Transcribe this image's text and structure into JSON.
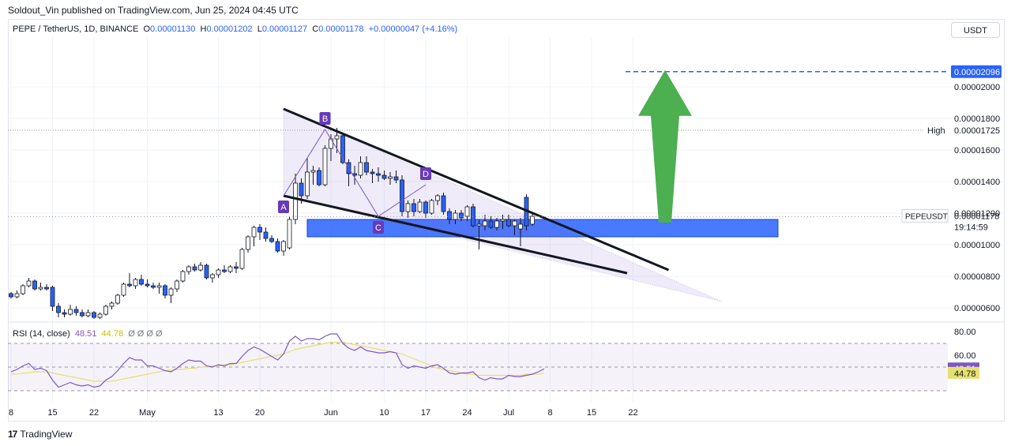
{
  "header": {
    "published_text": "Soldout_Vin published on TradingView.com, Jun 25, 2024 04:45 UTC"
  },
  "legend": {
    "symbol": "PEPE / TetherUS, 1D, BINANCE",
    "open_label": "O",
    "open": "0.00001130",
    "high_label": "H",
    "high": "0.00001202",
    "low_label": "L",
    "low": "0.00001127",
    "close_label": "C",
    "close": "0.00001178",
    "change": "+0.00000047 (+4.16%)"
  },
  "currency_button": "USDT",
  "rsi_legend": {
    "name": "RSI (14, close)",
    "rsi_value": "48.51",
    "ma_value": "44.78",
    "extras": "Ø Ø Ø Ø"
  },
  "footer": {
    "brand": "TradingView"
  },
  "colors": {
    "up": "#ffffff",
    "down": "#2962ff",
    "zone": "#2962ff",
    "arrow": "#4caf50",
    "rsi": "#7e57c2",
    "rsi_ma": "#e6e070",
    "pattern": "#7e57c2"
  },
  "chart_data": {
    "type": "candlestick",
    "symbol": "PEPEUSDT",
    "price_axis": {
      "ticks": [
        "0.00000600",
        "0.00000800",
        "0.00001000",
        "0.00001200",
        "0.00001400",
        "0.00001600",
        "0.00001800",
        "0.00002000"
      ],
      "tick_values": [
        6e-06,
        8e-06,
        1e-05,
        1.2e-05,
        1.4e-05,
        1.6e-05,
        1.8e-05,
        2e-05
      ],
      "range": [
        5.2e-06,
        2.315e-05
      ]
    },
    "time_axis": {
      "labels": [
        "8",
        "15",
        "22",
        "May",
        "13",
        "20",
        "Jun",
        "10",
        "17",
        "24",
        "Jul",
        "8",
        "15",
        "22"
      ],
      "label_day_index": [
        0,
        7,
        14,
        23,
        35,
        42,
        54,
        63,
        70,
        77,
        84,
        91,
        98,
        105
      ]
    },
    "candles": [
      [
        6.9e-06,
        7e-06,
        6.6e-06,
        6.7e-06
      ],
      [
        6.7e-06,
        7.1e-06,
        6.6e-06,
        6.9e-06
      ],
      [
        6.9e-06,
        7.5e-06,
        6.8e-06,
        7.4e-06
      ],
      [
        7.4e-06,
        7.9e-06,
        7.3e-06,
        7.7e-06
      ],
      [
        7.7e-06,
        7.8e-06,
        7.1e-06,
        7.2e-06
      ],
      [
        7.2e-06,
        7.6e-06,
        7.1e-06,
        7.3e-06
      ],
      [
        7.3e-06,
        7.5e-06,
        7.1e-06,
        7.2e-06
      ],
      [
        7.3e-06,
        7.4e-06,
        5.8e-06,
        6.1e-06
      ],
      [
        6.1e-06,
        6.3e-06,
        5.4e-06,
        5.7e-06
      ],
      [
        5.7e-06,
        5.9e-06,
        5.4e-06,
        5.6e-06
      ],
      [
        5.6e-06,
        6.2e-06,
        5.5e-06,
        5.9e-06
      ],
      [
        5.9e-06,
        6.1e-06,
        5.5e-06,
        5.7e-06
      ],
      [
        5.7e-06,
        5.9e-06,
        5.4e-06,
        5.5e-06
      ],
      [
        5.5e-06,
        5.9e-06,
        5.4e-06,
        5.7e-06
      ],
      [
        5.7e-06,
        5.8e-06,
        5.3e-06,
        5.4e-06
      ],
      [
        5.4e-06,
        5.7e-06,
        5.3e-06,
        5.6e-06
      ],
      [
        5.6e-06,
        6.2e-06,
        5.5e-06,
        6.1e-06
      ],
      [
        6.1e-06,
        6.4e-06,
        5.9e-06,
        6.3e-06
      ],
      [
        6.3e-06,
        6.9e-06,
        6.2e-06,
        6.8e-06
      ],
      [
        6.8e-06,
        7.6e-06,
        6.7e-06,
        7.5e-06
      ],
      [
        7.5e-06,
        8.2e-06,
        7.3e-06,
        7.4e-06
      ],
      [
        7.4e-06,
        7.9e-06,
        7.2e-06,
        7.8e-06
      ],
      [
        7.8e-06,
        8.1e-06,
        7.4e-06,
        7.5e-06
      ],
      [
        7.5e-06,
        7.8e-06,
        7.3e-06,
        7.4e-06
      ],
      [
        7.4e-06,
        7.6e-06,
        7.2e-06,
        7.3e-06
      ],
      [
        7.3e-06,
        7.6e-06,
        6.9e-06,
        7.4e-06
      ],
      [
        7.4e-06,
        7.5e-06,
        6.6e-06,
        6.8e-06
      ],
      [
        6.8e-06,
        7.3e-06,
        6.3e-06,
        7.2e-06
      ],
      [
        7.2e-06,
        7.8e-06,
        7e-06,
        7.7e-06
      ],
      [
        7.7e-06,
        8.4e-06,
        7.6e-06,
        8.3e-06
      ],
      [
        8.3e-06,
        8.7e-06,
        8.1e-06,
        8.6e-06
      ],
      [
        8.6e-06,
        8.8e-06,
        8.3e-06,
        8.4e-06
      ],
      [
        8.4e-06,
        8.9e-06,
        8.3e-06,
        8.7e-06
      ],
      [
        8.7e-06,
        8.8e-06,
        7.8e-06,
        7.9e-06
      ],
      [
        7.9e-06,
        8.2e-06,
        7.6e-06,
        8.1e-06
      ],
      [
        8.1e-06,
        8.5e-06,
        7.9e-06,
        8.4e-06
      ],
      [
        8.4e-06,
        8.7e-06,
        8.2e-06,
        8.3e-06
      ],
      [
        8.3e-06,
        8.7e-06,
        8.2e-06,
        8.6e-06
      ],
      [
        8.6e-06,
        8.9e-06,
        8.2e-06,
        8.5e-06
      ],
      [
        8.5e-06,
        9.8e-06,
        8.4e-06,
        9.7e-06
      ],
      [
        9.7e-06,
        1.06e-05,
        9.5e-06,
        1.05e-05
      ],
      [
        1.05e-05,
        1.12e-05,
        9.9e-06,
        1.11e-05
      ],
      [
        1.11e-05,
        1.13e-05,
        1.03e-05,
        1.08e-05
      ],
      [
        1.08e-05,
        1.11e-05,
        1.02e-05,
        1.04e-05
      ],
      [
        1.04e-05,
        1.06e-05,
        1.01e-05,
        1.02e-05
      ],
      [
        1.02e-05,
        1.04e-05,
        9.5e-06,
        9.6e-06
      ],
      [
        9.6e-06,
        1.03e-05,
        9.3e-06,
        1.02e-05
      ],
      [
        9.8e-06,
        1.18e-05,
        9.7e-06,
        1.16e-05
      ],
      [
        1.16e-05,
        1.45e-05,
        1.13e-05,
        1.39e-05
      ],
      [
        1.39e-05,
        1.42e-05,
        1.26e-05,
        1.31e-05
      ],
      [
        1.31e-05,
        1.55e-05,
        1.29e-05,
        1.46e-05
      ],
      [
        1.46e-05,
        1.5e-05,
        1.38e-05,
        1.47e-05
      ],
      [
        1.47e-05,
        1.49e-05,
        1.37e-05,
        1.38e-05
      ],
      [
        1.38e-05,
        1.63e-05,
        1.37e-05,
        1.61e-05
      ],
      [
        1.61e-05,
        1.7e-05,
        1.53e-05,
        1.67e-05
      ],
      [
        1.67e-05,
        1.74e-05,
        1.58e-05,
        1.69e-05
      ],
      [
        1.69e-05,
        1.7e-05,
        1.51e-05,
        1.52e-05
      ],
      [
        1.52e-05,
        1.54e-05,
        1.37e-05,
        1.45e-05
      ],
      [
        1.45e-05,
        1.5e-05,
        1.38e-05,
        1.44e-05
      ],
      [
        1.44e-05,
        1.56e-05,
        1.42e-05,
        1.52e-05
      ],
      [
        1.52e-05,
        1.56e-05,
        1.44e-05,
        1.46e-05
      ],
      [
        1.46e-05,
        1.48e-05,
        1.39e-05,
        1.45e-05
      ],
      [
        1.45e-05,
        1.49e-05,
        1.4e-05,
        1.44e-05
      ],
      [
        1.44e-05,
        1.47e-05,
        1.41e-05,
        1.42e-05
      ],
      [
        1.42e-05,
        1.46e-05,
        1.38e-05,
        1.43e-05
      ],
      [
        1.43e-05,
        1.47e-05,
        1.39e-05,
        1.41e-05
      ],
      [
        1.41e-05,
        1.44e-05,
        1.18e-05,
        1.21e-05
      ],
      [
        1.21e-05,
        1.28e-05,
        1.17e-05,
        1.26e-05
      ],
      [
        1.26e-05,
        1.29e-05,
        1.18e-05,
        1.21e-05
      ],
      [
        1.21e-05,
        1.29e-05,
        1.2e-05,
        1.27e-05
      ],
      [
        1.27e-05,
        1.28e-05,
        1.17e-05,
        1.2e-05
      ],
      [
        1.2e-05,
        1.29e-05,
        1.19e-05,
        1.28e-05
      ],
      [
        1.28e-05,
        1.32e-05,
        1.25e-05,
        1.31e-05
      ],
      [
        1.31e-05,
        1.33e-05,
        1.19e-05,
        1.21e-05
      ],
      [
        1.21e-05,
        1.23e-05,
        1.13e-05,
        1.16e-05
      ],
      [
        1.16e-05,
        1.22e-05,
        1.13e-05,
        1.2e-05
      ],
      [
        1.2e-05,
        1.22e-05,
        1.15e-05,
        1.17e-05
      ],
      [
        1.18e-05,
        1.25e-05,
        1.15e-05,
        1.24e-05
      ],
      [
        1.24e-05,
        1.26e-05,
        1.11e-05,
        1.12e-05
      ],
      [
        1.12e-05,
        1.16e-05,
        9.7e-06,
        1.13e-05
      ],
      [
        1.12e-05,
        1.19e-05,
        1.09e-05,
        1.15e-05
      ],
      [
        1.15e-05,
        1.18e-05,
        1.1e-05,
        1.11e-05
      ],
      [
        1.11e-05,
        1.17e-05,
        1.09e-05,
        1.15e-05
      ],
      [
        1.15e-05,
        1.19e-05,
        1.1e-05,
        1.16e-05
      ],
      [
        1.16e-05,
        1.19e-05,
        1.11e-05,
        1.12e-05
      ],
      [
        1.12e-05,
        1.16e-05,
        1.06e-05,
        1.15e-05
      ],
      [
        1.1e-05,
        1.17e-05,
        9.9e-06,
        1.13e-05
      ],
      [
        1.3e-05,
        1.32e-05,
        1.09e-05,
        1.12e-05
      ],
      [
        1.13e-05,
        1.2e-05,
        1.12e-05,
        1.18e-05
      ]
    ],
    "last_price": "0.00001178",
    "countdown": "19:14:59",
    "high_label": "High",
    "high_value": "0.00001725",
    "high_price": 1.725e-05,
    "target_value": "0.00002096",
    "target_price": 2.096e-05,
    "support_zone": {
      "from_price": 1.05e-05,
      "to_price": 1.16e-05,
      "from_day": 42,
      "to_day": 112
    },
    "trendlines": {
      "upper": {
        "from": [
          46,
          1.86e-05
        ],
        "to": [
          111,
          8.4e-06
        ]
      },
      "lower": {
        "from": [
          46,
          1.31e-05
        ],
        "to": [
          104,
          8.2e-06
        ]
      },
      "wedge_apex": [
        120,
        6.4e-06
      ]
    },
    "pattern_points": [
      {
        "label": "A",
        "day": 46,
        "price": 1.31e-05
      },
      {
        "label": "B",
        "day": 53,
        "price": 1.73e-05
      },
      {
        "label": "C",
        "day": 62,
        "price": 1.18e-05
      },
      {
        "label": "D",
        "day": 70,
        "price": 1.38e-05
      }
    ],
    "rsi": {
      "axis_ticks": [
        "80.00",
        "60.00"
      ],
      "tick_values": [
        80,
        60
      ],
      "levels": [
        70,
        50,
        30
      ],
      "current": "48.51",
      "current_value": 48.51,
      "ma_current": "44.78",
      "ma_current_value": 44.78,
      "values": [
        46,
        48,
        51,
        53,
        48,
        49,
        47,
        39,
        33,
        35,
        37,
        35,
        34,
        35,
        33,
        34,
        39,
        42,
        47,
        53,
        58,
        56,
        56,
        51,
        51,
        49,
        47,
        46,
        49,
        53,
        56,
        55,
        55,
        51,
        50,
        52,
        51,
        53,
        53,
        59,
        64,
        67,
        65,
        62,
        59,
        56,
        61,
        72,
        76,
        72,
        74,
        74,
        73,
        76,
        78,
        78,
        70,
        66,
        64,
        67,
        64,
        63,
        62,
        62,
        63,
        62,
        52,
        49,
        51,
        50,
        49,
        51,
        52,
        49,
        45,
        44,
        45,
        45,
        46,
        41,
        39,
        41,
        40,
        40,
        43,
        42,
        42,
        43,
        44,
        46,
        48.5
      ],
      "ma_values": [
        44,
        44,
        45,
        45,
        46,
        46,
        46,
        45,
        44,
        43,
        42,
        41,
        40,
        39,
        38,
        38,
        38,
        38,
        39,
        40,
        41,
        42,
        43,
        44,
        45,
        46,
        47,
        47,
        48,
        48,
        49,
        49,
        50,
        50,
        51,
        51,
        52,
        52,
        53,
        54,
        55,
        56,
        57,
        58,
        59,
        60,
        61,
        63,
        65,
        66,
        67,
        68,
        69,
        70,
        71,
        71,
        71,
        70,
        69,
        68,
        67,
        66,
        65,
        64,
        63,
        62,
        61,
        59,
        57,
        55,
        53,
        51,
        49,
        48,
        47,
        46,
        45,
        44,
        44,
        43,
        43,
        43,
        43,
        43,
        43,
        43,
        43,
        44,
        44,
        44,
        44.8
      ]
    }
  }
}
